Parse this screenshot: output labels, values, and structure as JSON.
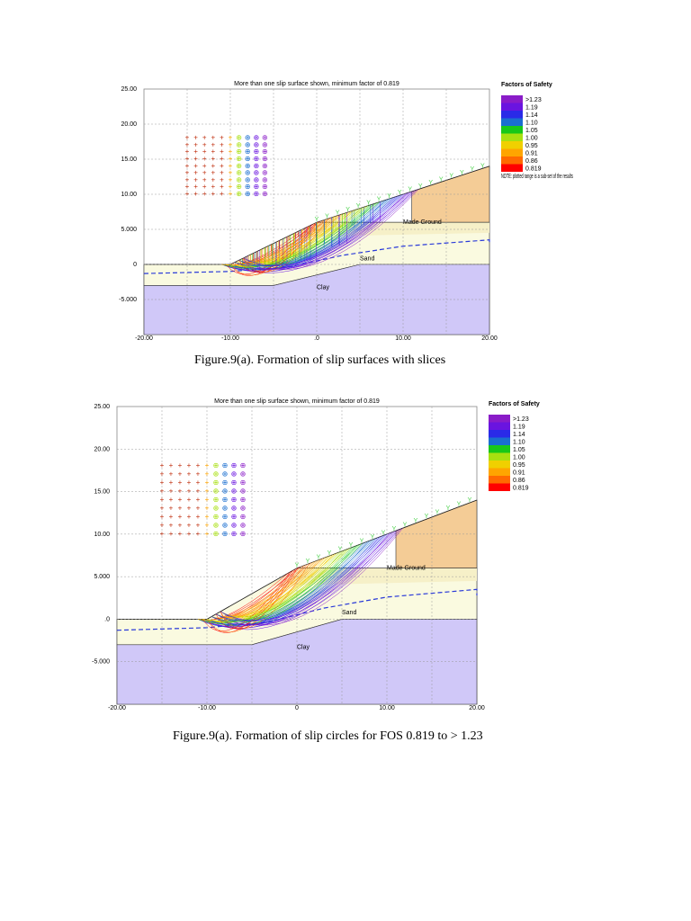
{
  "figures": [
    {
      "title": "More than one slip surface shown, minimum factor of 0.819",
      "yticks": [
        "25.00",
        "20.00",
        "15.00",
        "10.00",
        "5.000",
        "0",
        "-5.000"
      ],
      "xticks": [
        "-20.00",
        "-10.00",
        ".0",
        "10.00",
        "20.00"
      ],
      "legend_title": "Factors of Safety",
      "legend": [
        ">1.23",
        "1.19",
        "1.14",
        "1.10",
        "1.05",
        "1.00",
        "0.95",
        "0.91",
        "0.86",
        "0.819"
      ],
      "note": "NOTE: plotted range is a sub-set of the results",
      "layers": [
        "Made Ground",
        "Sand",
        "Clay"
      ],
      "caption": "Figure.9(a). Formation of slip surfaces with slices"
    },
    {
      "title": "More than one slip surface shown, minimum factor of 0.819",
      "yticks": [
        "25.00",
        "20.00",
        "15.00",
        "10.00",
        "5.000",
        ".0",
        "-5.000"
      ],
      "xticks": [
        "-20.00",
        "-10.00",
        "0",
        "10.00",
        "20.00"
      ],
      "legend_title": "Factors of Safety",
      "legend": [
        ">1.23",
        "1.19",
        "1.14",
        "1.10",
        "1.05",
        "1.00",
        "0.95",
        "0.91",
        "0.86",
        "0.819"
      ],
      "layers": [
        "Made Ground",
        "Sand",
        "Clay"
      ],
      "caption": "Figure.9(a). Formation of slip circles  for FOS 0.819 to > 1.23"
    }
  ]
}
